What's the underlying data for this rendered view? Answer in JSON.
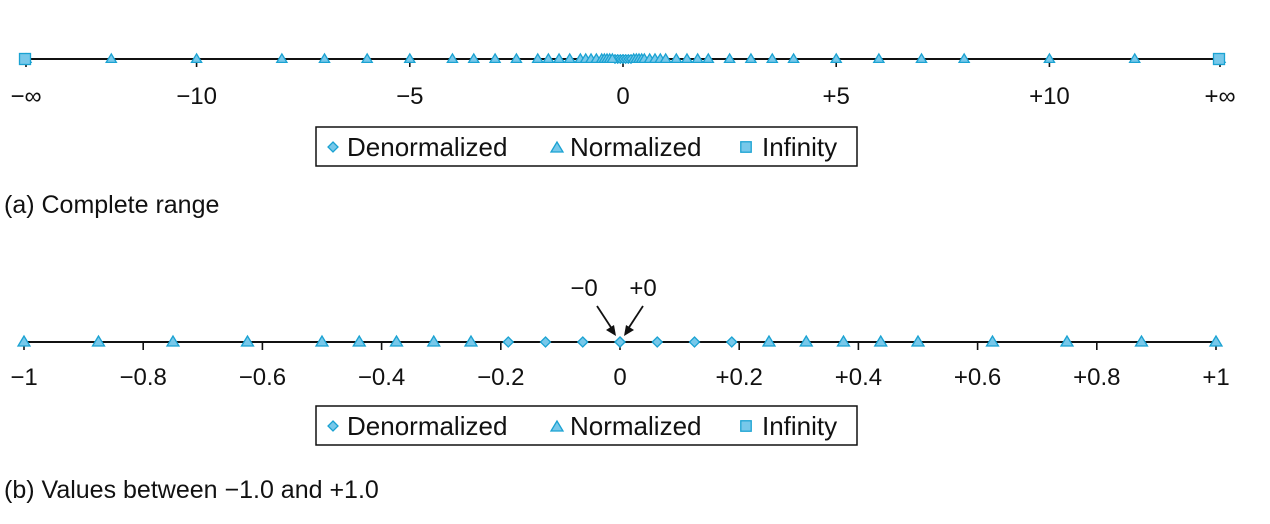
{
  "colors": {
    "marker_fill": "#77C8EA",
    "marker_stroke": "#1AA2D2",
    "axis": "#111111",
    "legend_border": "#111111"
  },
  "legend": {
    "denormalized": "Denormalized",
    "normalized": "Normalized",
    "infinity": "Infinity",
    "denormalized_icon": "diamond-icon",
    "normalized_icon": "triangle-icon",
    "infinity_icon": "square-icon"
  },
  "chart_data": [
    {
      "type": "scatter",
      "caption": "(a) Complete range",
      "xlim": [
        -14,
        14
      ],
      "ticks": [
        {
          "value": -14,
          "label": "−∞"
        },
        {
          "value": -10,
          "label": "−10"
        },
        {
          "value": -5,
          "label": "−5"
        },
        {
          "value": 0,
          "label": "0"
        },
        {
          "value": 5,
          "label": "+5"
        },
        {
          "value": 10,
          "label": "+10"
        },
        {
          "value": 14,
          "label": "+∞"
        }
      ],
      "series": [
        {
          "name": "Denormalized",
          "marker": "diamond",
          "x": [
            -0.1875,
            -0.125,
            -0.0625,
            -0.0,
            0.0,
            0.0625,
            0.125,
            0.1875
          ]
        },
        {
          "name": "Normalized",
          "marker": "triangle",
          "x": [
            -14,
            -12,
            -10,
            -8,
            -7,
            -6,
            -5,
            -4,
            -3.5,
            -3,
            -2.5,
            -2,
            -1.75,
            -1.5,
            -1.25,
            -1,
            -0.875,
            -0.75,
            -0.625,
            -0.5,
            -0.4375,
            -0.375,
            -0.3125,
            -0.25,
            0.25,
            0.3125,
            0.375,
            0.4375,
            0.5,
            0.625,
            0.75,
            0.875,
            1,
            1.25,
            1.5,
            1.75,
            2,
            2.5,
            3,
            3.5,
            4,
            5,
            6,
            7,
            8,
            10,
            12,
            14
          ]
        },
        {
          "name": "Infinity",
          "marker": "square",
          "x": [
            "-∞",
            "+∞"
          ]
        }
      ]
    },
    {
      "type": "scatter",
      "caption": "(b) Values between −1.0 and +1.0",
      "xlim": [
        -1,
        1
      ],
      "ticks": [
        {
          "value": -1,
          "label": "−1"
        },
        {
          "value": -0.8,
          "label": "−0.8"
        },
        {
          "value": -0.6,
          "label": "−0.6"
        },
        {
          "value": -0.4,
          "label": "−0.4"
        },
        {
          "value": -0.2,
          "label": "−0.2"
        },
        {
          "value": 0,
          "label": "0"
        },
        {
          "value": 0.2,
          "label": "+0.2"
        },
        {
          "value": 0.4,
          "label": "+0.4"
        },
        {
          "value": 0.6,
          "label": "+0.6"
        },
        {
          "value": 0.8,
          "label": "+0.8"
        },
        {
          "value": 1,
          "label": "+1"
        }
      ],
      "annotations": {
        "neg_zero": "−0",
        "pos_zero": "+0"
      },
      "series": [
        {
          "name": "Denormalized",
          "marker": "diamond",
          "x": [
            -0.1875,
            -0.125,
            -0.0625,
            -0.0,
            0.0,
            0.0625,
            0.125,
            0.1875
          ]
        },
        {
          "name": "Normalized",
          "marker": "triangle",
          "x": [
            -1,
            -0.875,
            -0.75,
            -0.625,
            -0.5,
            -0.4375,
            -0.375,
            -0.3125,
            -0.25,
            0.25,
            0.3125,
            0.375,
            0.4375,
            0.5,
            0.625,
            0.75,
            0.875,
            1
          ]
        }
      ]
    }
  ]
}
